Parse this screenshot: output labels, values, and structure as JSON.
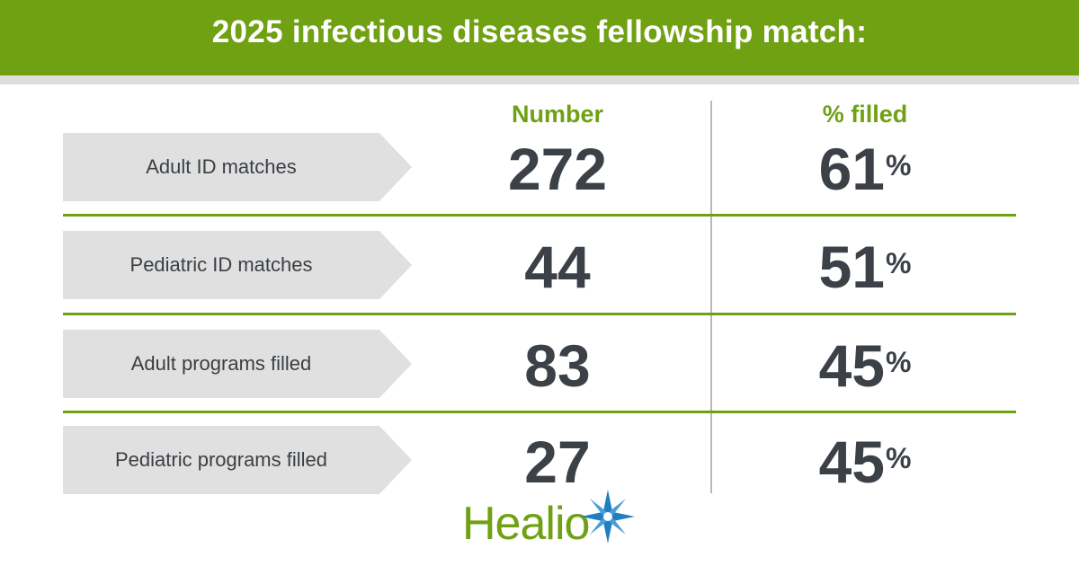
{
  "header": {
    "title": "2025 infectious diseases fellowship match:"
  },
  "columns": {
    "number": "Number",
    "percent": "% filled"
  },
  "rows": [
    {
      "label": "Adult ID matches",
      "number": "272",
      "percent": "61",
      "percent_sign": "%"
    },
    {
      "label": "Pediatric ID matches",
      "number": "44",
      "percent": "51",
      "percent_sign": "%"
    },
    {
      "label": "Adult programs filled",
      "number": "83",
      "percent": "45",
      "percent_sign": "%"
    },
    {
      "label": "Pediatric programs filled",
      "number": "27",
      "percent": "45",
      "percent_sign": "%"
    }
  ],
  "logo": {
    "text": "Healio",
    "icon": "star-burst-icon"
  },
  "colors": {
    "accent_green": "#6fa113",
    "value_text": "#3b4147",
    "label_background": "#e0e0e0",
    "stripe_gray": "#dedede",
    "logo_star_blue": "#1f7fc1"
  }
}
